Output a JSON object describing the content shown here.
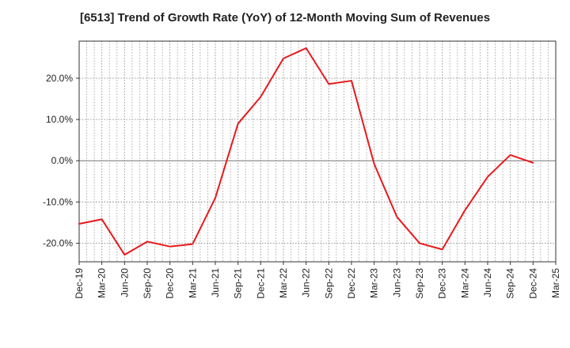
{
  "chart_data": {
    "type": "line",
    "title": "[6513]  Trend of Growth Rate (YoY) of 12-Month Moving Sum of Revenues",
    "xlabel": "",
    "ylabel": "",
    "x_tick_labels": [
      "Dec-19",
      "Mar-20",
      "Jun-20",
      "Sep-20",
      "Dec-20",
      "Mar-21",
      "Jun-21",
      "Sep-21",
      "Dec-21",
      "Mar-22",
      "Jun-22",
      "Sep-22",
      "Dec-22",
      "Mar-23",
      "Jun-23",
      "Sep-23",
      "Dec-23",
      "Mar-24",
      "Jun-24",
      "Sep-24",
      "Dec-24",
      "Mar-25"
    ],
    "y_tick_labels": [
      "-20.0%",
      "-10.0%",
      "0.0%",
      "10.0%",
      "20.0%"
    ],
    "y_ticks": [
      -20,
      -10,
      0,
      10,
      20
    ],
    "ylim": [
      -24.5,
      29
    ],
    "grid": true,
    "series": [
      {
        "color": "#e8191c",
        "x": [
          "Dec-19",
          "Mar-20",
          "Jun-20",
          "Sep-20",
          "Dec-20",
          "Mar-21",
          "Jun-21",
          "Sep-21",
          "Dec-21",
          "Mar-22",
          "Jun-22",
          "Sep-22",
          "Dec-22",
          "Mar-23",
          "Jun-23",
          "Sep-23",
          "Dec-23",
          "Mar-24",
          "Jun-24",
          "Sep-24",
          "Dec-24"
        ],
        "values": [
          -15.3,
          -14.2,
          -22.8,
          -19.6,
          -20.8,
          -20.2,
          -9.0,
          9.0,
          15.5,
          24.8,
          27.3,
          18.6,
          19.4,
          -0.8,
          -13.6,
          -20.0,
          -21.5,
          -12.0,
          -3.9,
          1.4,
          -0.5
        ]
      }
    ]
  }
}
